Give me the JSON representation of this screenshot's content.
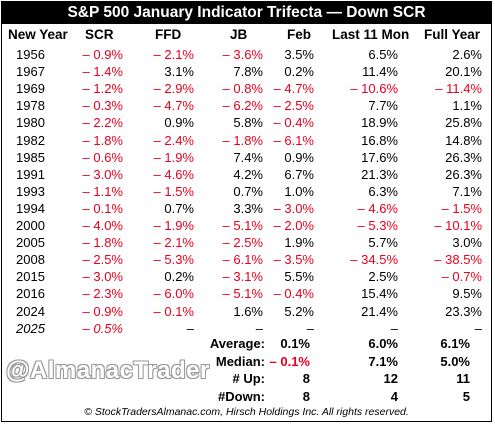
{
  "title": "S&P 500 January Indicator Trifecta — Down SCR",
  "headers": [
    "New Year",
    "SCR",
    "FFD",
    "JB",
    "Feb",
    "Last 11 Mon",
    "Full Year"
  ],
  "rows": [
    {
      "year": "1956",
      "scr": "– 0.9%",
      "ffd": "– 2.1%",
      "jb": "– 3.6%",
      "feb": "3.5%",
      "last11": "6.5%",
      "full": "2.6%"
    },
    {
      "year": "1967",
      "scr": "– 1.4%",
      "ffd": "3.1%",
      "jb": "7.8%",
      "feb": "0.2%",
      "last11": "11.4%",
      "full": "20.1%"
    },
    {
      "year": "1969",
      "scr": "– 1.2%",
      "ffd": "– 2.9%",
      "jb": "– 0.8%",
      "feb": "– 4.7%",
      "last11": "– 10.6%",
      "full": "– 11.4%"
    },
    {
      "year": "1978",
      "scr": "– 0.3%",
      "ffd": "– 4.7%",
      "jb": "– 6.2%",
      "feb": "– 2.5%",
      "last11": "7.7%",
      "full": "1.1%"
    },
    {
      "year": "1980",
      "scr": "– 2.2%",
      "ffd": "0.9%",
      "jb": "5.8%",
      "feb": "– 0.4%",
      "last11": "18.9%",
      "full": "25.8%"
    },
    {
      "year": "1982",
      "scr": "– 1.8%",
      "ffd": "– 2.4%",
      "jb": "– 1.8%",
      "feb": "– 6.1%",
      "last11": "16.8%",
      "full": "14.8%"
    },
    {
      "year": "1985",
      "scr": "– 0.6%",
      "ffd": "– 1.9%",
      "jb": "7.4%",
      "feb": "0.9%",
      "last11": "17.6%",
      "full": "26.3%"
    },
    {
      "year": "1991",
      "scr": "– 3.0%",
      "ffd": "– 4.6%",
      "jb": "4.2%",
      "feb": "6.7%",
      "last11": "21.3%",
      "full": "26.3%"
    },
    {
      "year": "1993",
      "scr": "– 1.1%",
      "ffd": "– 1.5%",
      "jb": "0.7%",
      "feb": "1.0%",
      "last11": "6.3%",
      "full": "7.1%"
    },
    {
      "year": "1994",
      "scr": "– 0.1%",
      "ffd": "0.7%",
      "jb": "3.3%",
      "feb": "– 3.0%",
      "last11": "– 4.6%",
      "full": "– 1.5%"
    },
    {
      "year": "2000",
      "scr": "– 4.0%",
      "ffd": "– 1.9%",
      "jb": "– 5.1%",
      "feb": "– 2.0%",
      "last11": "– 5.3%",
      "full": "– 10.1%"
    },
    {
      "year": "2005",
      "scr": "– 1.8%",
      "ffd": "– 2.1%",
      "jb": "– 2.5%",
      "feb": "1.9%",
      "last11": "5.7%",
      "full": "3.0%"
    },
    {
      "year": "2008",
      "scr": "– 2.5%",
      "ffd": "– 5.3%",
      "jb": "– 6.1%",
      "feb": "– 3.5%",
      "last11": "– 34.5%",
      "full": "– 38.5%"
    },
    {
      "year": "2015",
      "scr": "– 3.0%",
      "ffd": "0.2%",
      "jb": "– 3.1%",
      "feb": "5.5%",
      "last11": "2.5%",
      "full": "– 0.7%"
    },
    {
      "year": "2016",
      "scr": "– 2.3%",
      "ffd": "– 6.0%",
      "jb": "– 5.1%",
      "feb": "– 0.4%",
      "last11": "15.4%",
      "full": "9.5%"
    },
    {
      "year": "2024",
      "scr": "– 0.9%",
      "ffd": "– 0.1%",
      "jb": "1.6%",
      "feb": "5.2%",
      "last11": "21.4%",
      "full": "23.3%"
    },
    {
      "year": "2025",
      "scr": "– 0.5%",
      "ffd": "–",
      "jb": "–",
      "feb": "–",
      "last11": "–",
      "full": "–",
      "italic": true
    }
  ],
  "summary": [
    {
      "label": "Average:",
      "feb": "0.1%",
      "last11": "6.0%",
      "full": "6.1%"
    },
    {
      "label": "Median:",
      "feb": "– 0.1%",
      "last11": "7.1%",
      "full": "5.0%"
    },
    {
      "label": "# Up:",
      "feb": "8",
      "last11": "12",
      "full": "11"
    },
    {
      "label": "#Down:",
      "feb": "8",
      "last11": "4",
      "full": "5"
    }
  ],
  "watermark": "@AlmanacTrader",
  "footer": "© StockTradersAlmanac.com, Hirsch Holdings Inc. All rights reserved.",
  "colors": {
    "negative": "#e8001c",
    "title_bg": "#000000"
  }
}
